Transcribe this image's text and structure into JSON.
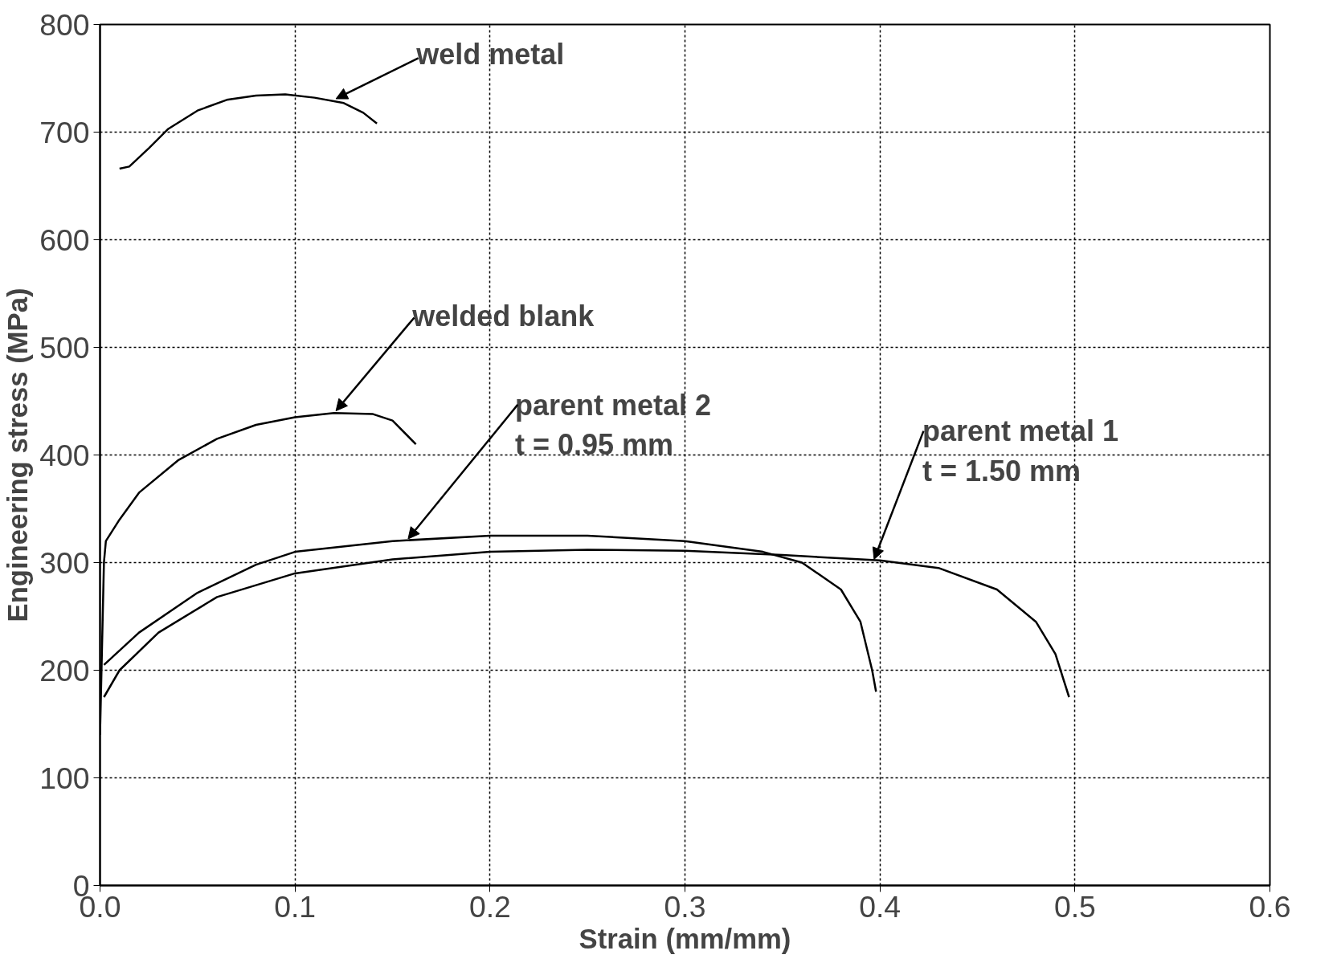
{
  "chart_data": {
    "type": "line",
    "xlabel": "Strain (mm/mm)",
    "ylabel": "Engineering stress (MPa)",
    "xlim": [
      0,
      0.6
    ],
    "ylim": [
      0,
      800
    ],
    "xticks": [
      {
        "value": 0,
        "label": "0.0"
      },
      0.1,
      0.2,
      0.3,
      0.4,
      0.5,
      0.6
    ],
    "yticks": [
      0,
      100,
      200,
      300,
      400,
      500,
      600,
      700,
      800
    ],
    "grid": true,
    "marker": "none",
    "line_style": "solid",
    "series": [
      {
        "color": "#000000",
        "x": [
          0.01,
          0.015,
          0.025,
          0.035,
          0.05,
          0.065,
          0.08,
          0.095,
          0.11,
          0.125,
          0.135,
          0.142
        ],
        "values": [
          666,
          668,
          685,
          703,
          720,
          730,
          734,
          735,
          732,
          727,
          718,
          708
        ]
      },
      {
        "color": "#000000",
        "x": [
          0.0,
          0.002,
          0.003,
          0.01,
          0.02,
          0.04,
          0.06,
          0.08,
          0.1,
          0.12,
          0.14,
          0.15,
          0.162
        ],
        "values": [
          140,
          300,
          320,
          340,
          365,
          395,
          415,
          428,
          435,
          439,
          438,
          432,
          410
        ]
      },
      {
        "color": "#000000",
        "x": [
          0.002,
          0.02,
          0.05,
          0.08,
          0.1,
          0.15,
          0.2,
          0.25,
          0.3,
          0.34,
          0.36,
          0.38,
          0.39,
          0.396,
          0.398
        ],
        "values": [
          205,
          235,
          272,
          298,
          310,
          320,
          325,
          325,
          320,
          310,
          300,
          275,
          245,
          200,
          180
        ]
      },
      {
        "color": "#000000",
        "x": [
          0.002,
          0.01,
          0.03,
          0.06,
          0.1,
          0.15,
          0.2,
          0.25,
          0.3,
          0.35,
          0.4,
          0.43,
          0.46,
          0.48,
          0.49,
          0.497
        ],
        "values": [
          175,
          200,
          235,
          268,
          290,
          303,
          310,
          312,
          311,
          307,
          302,
          295,
          275,
          245,
          215,
          175
        ]
      }
    ],
    "annotations": [
      {
        "text": "weld metal",
        "x": 0.121,
        "y": 731
      },
      {
        "text": "welded blank",
        "x": 0.121,
        "y": 441
      },
      {
        "text": "parent metal 2\nt = 0.95 mm",
        "x": 0.158,
        "y": 322
      },
      {
        "text": "parent metal 1\nt = 1.50 mm",
        "x": 0.397,
        "y": 303
      }
    ]
  }
}
